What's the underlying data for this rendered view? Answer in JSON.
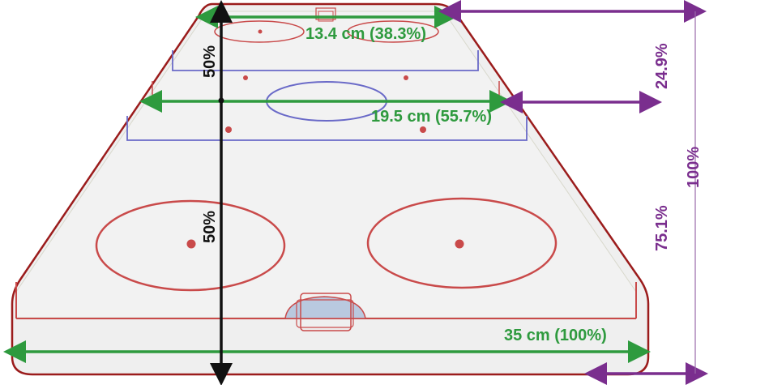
{
  "diagram": {
    "widths": [
      {
        "label": "13.4 cm (38.3%)"
      },
      {
        "label": "19.5 cm (55.7%)"
      },
      {
        "label": "35 cm (100%)"
      }
    ],
    "center_halves": {
      "top": "50%",
      "bottom": "50%"
    },
    "right_heights": {
      "upper": "24.9%",
      "lower": "75.1%",
      "total": "100%"
    },
    "colors": {
      "board": "#9b1c1c",
      "ice": "#efefef",
      "red_line": "#c94a4a",
      "blue_line": "#6a6ac8",
      "green_dim": "#2e9a3e",
      "purple_dim": "#7a2e8e",
      "black_dim": "#111111",
      "crease": "#b9c9df"
    }
  }
}
